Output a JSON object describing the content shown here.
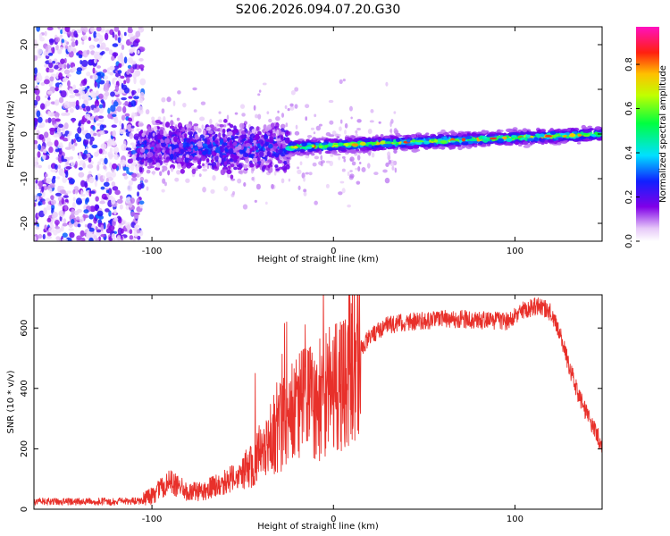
{
  "title": "S206.2026.094.07.20.G30",
  "colors": {
    "axes": "#000000",
    "snr_line": "#e8302a",
    "background": "#ffffff"
  },
  "chart_data": [
    {
      "type": "heatmap",
      "name": "spectrogram",
      "xlabel": "Height of straight line (km)",
      "ylabel": "Frequency (Hz)",
      "xlim": [
        -165,
        148
      ],
      "ylim": [
        -24,
        24
      ],
      "xticks": [
        -100,
        0,
        100
      ],
      "yticks": [
        -20,
        -10,
        0,
        10,
        20
      ],
      "grid": false,
      "colorbar": {
        "label": "Normalized spectral amplitude",
        "range": [
          0,
          0.97
        ],
        "ticks": [
          "0.0",
          "0.2",
          "0.4",
          "0.6",
          "0.8"
        ],
        "colormap": "white-purple-blue-cyan-green-yellow-red-magenta"
      },
      "regions": [
        {
          "description": "scattered noise",
          "x_from": -165,
          "x_to": -105,
          "freq_spread": 24,
          "amplitude": 0.15
        },
        {
          "description": "broad signal cloud",
          "x_from": -108,
          "x_to": -25,
          "freq_center": -3,
          "freq_spread": 6,
          "amplitude": 0.3
        },
        {
          "description": "narrow tone",
          "x_from": -25,
          "x_to": 148,
          "freq_start": -3,
          "freq_end": 0,
          "freq_spread": 1.2,
          "amplitude": 0.85
        }
      ]
    },
    {
      "type": "line",
      "name": "snr",
      "xlabel": "Height of straight line (km)",
      "ylabel": "SNR (10 * v/v)",
      "xlim": [
        -165,
        148
      ],
      "ylim": [
        0,
        710
      ],
      "xticks": [
        -100,
        0,
        100
      ],
      "yticks": [
        0,
        200,
        400,
        600
      ],
      "grid": false,
      "series": [
        {
          "name": "SNR",
          "x": [
            -165,
            -140,
            -120,
            -105,
            -100,
            -95,
            -90,
            -85,
            -80,
            -70,
            -60,
            -50,
            -45,
            -40,
            -35,
            -30,
            -25,
            -20,
            -15,
            -10,
            -5,
            0,
            5,
            10,
            15,
            20,
            25,
            30,
            40,
            50,
            60,
            70,
            80,
            90,
            95,
            100,
            105,
            110,
            115,
            120,
            125,
            130,
            135,
            140,
            145,
            148
          ],
          "values": [
            25,
            25,
            25,
            28,
            45,
            70,
            90,
            75,
            55,
            65,
            90,
            120,
            145,
            175,
            230,
            270,
            300,
            330,
            360,
            340,
            370,
            400,
            430,
            480,
            530,
            570,
            595,
            610,
            620,
            625,
            630,
            630,
            625,
            625,
            620,
            640,
            660,
            670,
            670,
            650,
            580,
            470,
            380,
            310,
            250,
            210
          ],
          "color": "#e8302a"
        }
      ]
    }
  ]
}
